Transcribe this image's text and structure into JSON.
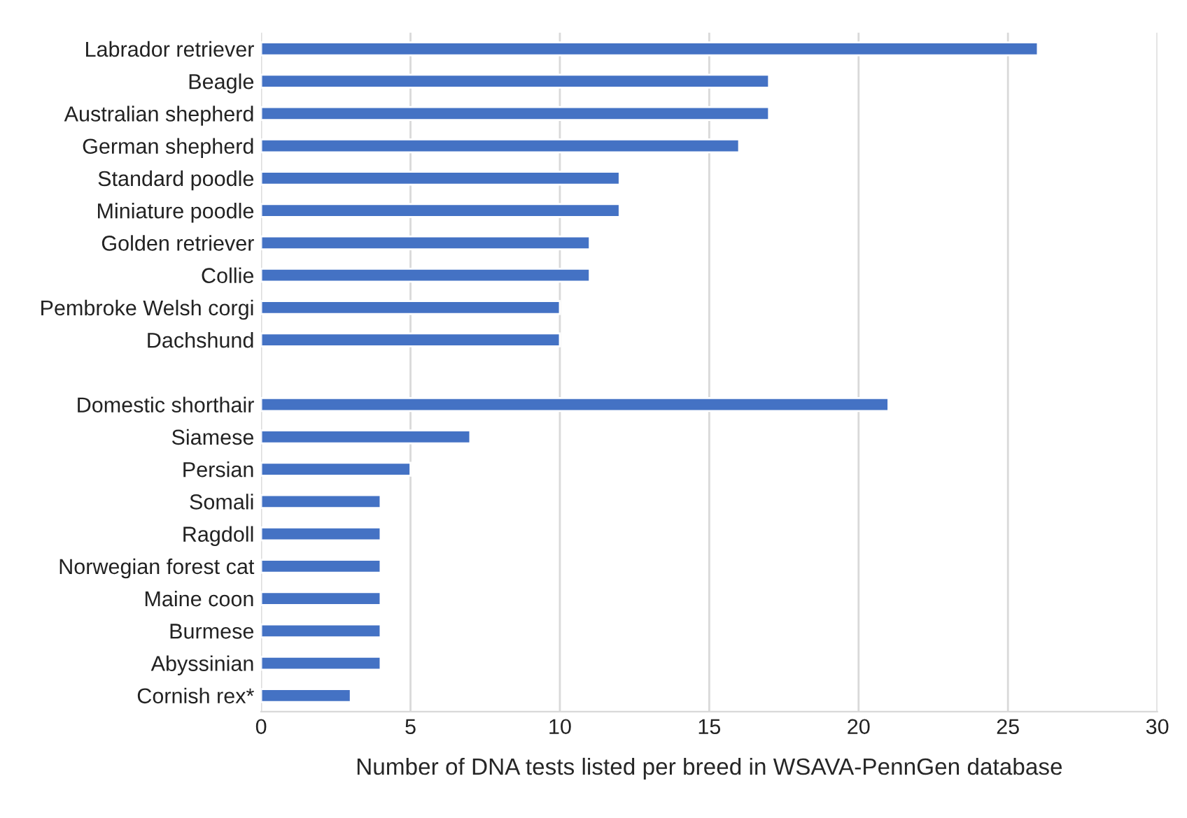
{
  "chart_data": {
    "type": "bar",
    "orientation": "horizontal",
    "xlabel": "Number of DNA tests listed per breed in WSAVA-PennGen database",
    "categories": [
      "Labrador retriever",
      "Beagle",
      "Australian shepherd",
      "German shepherd",
      "Standard poodle",
      "Miniature poodle",
      "Golden retriever",
      "Collie",
      "Pembroke Welsh corgi",
      "Dachshund",
      null,
      "Domestic shorthair",
      "Siamese",
      "Persian",
      "Somali",
      "Ragdoll",
      "Norwegian forest cat",
      "Maine coon",
      "Burmese",
      "Abyssinian",
      "Cornish rex*"
    ],
    "values": [
      26,
      17,
      17,
      16,
      12,
      12,
      11,
      11,
      10,
      10,
      null,
      21,
      7,
      5,
      4,
      4,
      4,
      4,
      4,
      4,
      3
    ],
    "color": "#4472c4",
    "xlim": [
      0,
      30
    ],
    "xticks": [
      0,
      5,
      10,
      15,
      20,
      25,
      30
    ],
    "grid": "x",
    "legend": false
  }
}
